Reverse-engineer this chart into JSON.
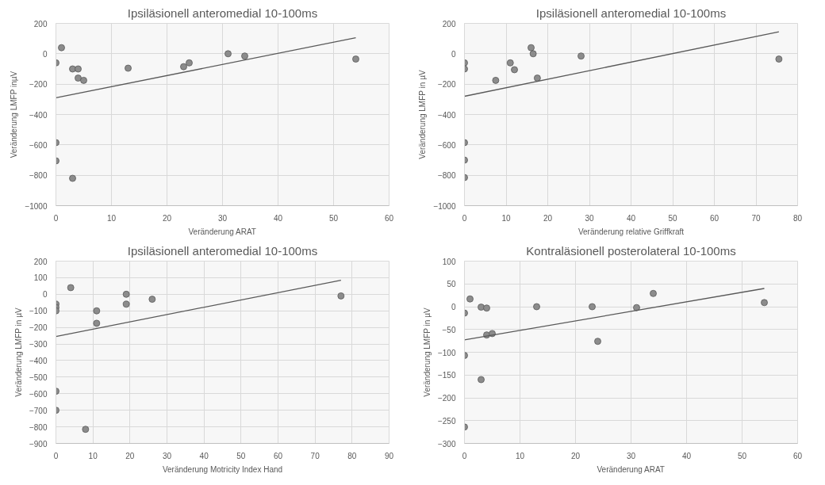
{
  "chart_data": [
    {
      "type": "scatter",
      "title": "Ipsiläsionell anteromedial 10-100ms",
      "xlabel": "Veränderung ARAT",
      "ylabel": "Veränderung LMFP inµV",
      "xlim": [
        0,
        60
      ],
      "xticks": [
        0,
        10,
        20,
        30,
        40,
        50,
        60
      ],
      "ylim": [
        -1000,
        200
      ],
      "yticks": [
        -1000,
        -800,
        -600,
        -400,
        -200,
        0,
        200
      ],
      "grid": true,
      "marker": "circle",
      "series": [
        {
          "type": "scatter",
          "color": "#8c8c8c",
          "x": [
            0,
            1,
            3,
            4,
            4,
            5,
            13,
            23,
            24,
            31,
            34,
            54,
            0,
            0,
            3
          ],
          "values": [
            -60,
            40,
            -100,
            -100,
            -160,
            -175,
            -95,
            -85,
            -60,
            0,
            -15,
            -35,
            -585,
            -705,
            -820
          ]
        },
        {
          "type": "line",
          "color": "#595959",
          "marker": "none",
          "x": [
            0,
            54
          ],
          "values": [
            -290,
            105
          ]
        }
      ]
    },
    {
      "type": "scatter",
      "title": "Ipsiläsionell anteromedial 10-100ms",
      "xlabel": "Veränderung relative Griffkraft",
      "ylabel": "Veränderung LMFP in µV",
      "xlim": [
        0,
        80
      ],
      "xticks": [
        0,
        10,
        20,
        30,
        40,
        50,
        60,
        70,
        80
      ],
      "ylim": [
        -1000,
        200
      ],
      "yticks": [
        -1000,
        -800,
        -600,
        -400,
        -200,
        0,
        200
      ],
      "grid": true,
      "marker": "circle",
      "series": [
        {
          "type": "scatter",
          "color": "#8c8c8c",
          "x": [
            0,
            0,
            7.5,
            11,
            12,
            16,
            16.5,
            17.5,
            28,
            75.5,
            0,
            0,
            0
          ],
          "values": [
            -60,
            -100,
            -175,
            -60,
            -105,
            40,
            0,
            -160,
            -15,
            -35,
            -585,
            -700,
            -815
          ]
        },
        {
          "type": "line",
          "color": "#595959",
          "marker": "none",
          "x": [
            0,
            75.5
          ],
          "values": [
            -280,
            145
          ]
        }
      ]
    },
    {
      "type": "scatter",
      "title": "Ipsiläsionell anteromedial 10-100ms",
      "xlabel": "Veränderung Motricity Index Hand",
      "ylabel": "Veränderung LMFP in µV",
      "xlim": [
        0,
        90
      ],
      "xticks": [
        0,
        10,
        20,
        30,
        40,
        50,
        60,
        70,
        80,
        90
      ],
      "ylim": [
        -900,
        200
      ],
      "yticks": [
        -900,
        -800,
        -700,
        -600,
        -500,
        -400,
        -300,
        -200,
        -100,
        0,
        100,
        200
      ],
      "grid": true,
      "marker": "circle",
      "series": [
        {
          "type": "scatter",
          "color": "#8c8c8c",
          "x": [
            0,
            0,
            0,
            4,
            11,
            11,
            19,
            19,
            26,
            77,
            0,
            0,
            8
          ],
          "values": [
            -60,
            -80,
            -100,
            40,
            -100,
            -175,
            0,
            -60,
            -30,
            -10,
            -585,
            -700,
            -815
          ]
        },
        {
          "type": "line",
          "color": "#595959",
          "marker": "none",
          "x": [
            0,
            77
          ],
          "values": [
            -255,
            85
          ]
        }
      ]
    },
    {
      "type": "scatter",
      "title": "Kontraläsionell posterolateral 10-100ms",
      "xlabel": "Veränderung ARAT",
      "ylabel": "Veränderung LMFP in µV",
      "xlim": [
        0,
        60
      ],
      "xticks": [
        0,
        10,
        20,
        30,
        40,
        50,
        60
      ],
      "ylim": [
        -300,
        100
      ],
      "yticks": [
        -300,
        -250,
        -200,
        -150,
        -100,
        -50,
        0,
        50,
        100
      ],
      "grid": true,
      "marker": "circle",
      "series": [
        {
          "type": "scatter",
          "color": "#8c8c8c",
          "x": [
            0,
            1,
            3,
            4,
            4,
            5,
            13,
            23,
            24,
            31,
            34,
            54,
            0,
            3,
            0
          ],
          "values": [
            -14,
            17,
            -1,
            -3,
            -62,
            -59,
            0,
            0,
            -76,
            -2,
            29,
            9,
            -107,
            -160,
            -264
          ]
        },
        {
          "type": "line",
          "color": "#595959",
          "marker": "none",
          "x": [
            0,
            54
          ],
          "values": [
            -73,
            40
          ]
        }
      ]
    }
  ]
}
